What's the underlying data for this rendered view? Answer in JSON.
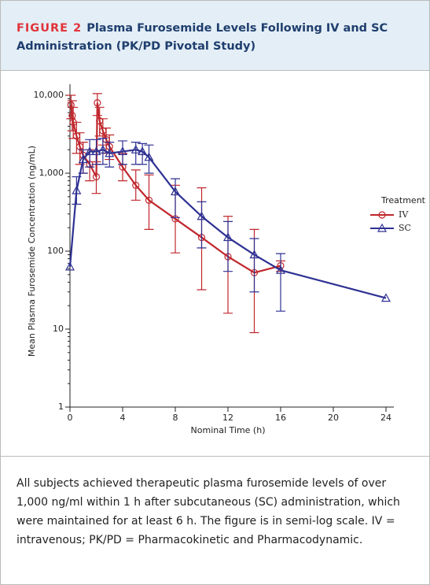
{
  "header": {
    "label": "FIGURE 2",
    "title": "Plasma Furosemide Levels Following IV and SC Administration (PK/PD Pivotal Study)"
  },
  "chart_data": {
    "type": "line",
    "log_y": true,
    "y_label": "Mean Plasma Furosemide Concentration (ng/mL)",
    "x_label": "Nominal Time (h)",
    "legend_title": "Treatment",
    "legend": "right",
    "xlim": [
      0,
      24
    ],
    "xticks": [
      0,
      4,
      8,
      12,
      16,
      20,
      24
    ],
    "ylim": [
      1,
      10000
    ],
    "yticks": [
      1,
      10,
      100,
      {
        "value": 1000,
        "label": "1,000"
      },
      {
        "value": 10000,
        "label": "10,000"
      }
    ],
    "series": [
      {
        "name": "IV",
        "color": "#c0272d",
        "marker": "circle",
        "x": [
          0.08,
          0.17,
          0.25,
          0.5,
          0.75,
          1,
          1.5,
          2,
          2.08,
          2.25,
          2.5,
          2.75,
          3,
          4,
          5,
          6,
          8,
          10,
          12,
          14,
          16
        ],
        "values": [
          7500,
          5500,
          4500,
          3000,
          2200,
          1700,
          1300,
          900,
          8000,
          4700,
          3500,
          2700,
          2200,
          1200,
          700,
          450,
          260,
          150,
          85,
          53,
          65
        ],
        "lower": [
          5000,
          3500,
          2800,
          1800,
          1300,
          1000,
          800,
          550,
          5500,
          3000,
          2300,
          1800,
          1500,
          800,
          450,
          190,
          95,
          32,
          16,
          9,
          55
        ],
        "upper": [
          10000,
          8500,
          7000,
          4500,
          3300,
          2500,
          2000,
          1400,
          10500,
          7000,
          5000,
          3800,
          3100,
          1800,
          1100,
          950,
          700,
          650,
          280,
          190,
          75
        ]
      },
      {
        "name": "SC",
        "color": "#2e3192",
        "marker": "triangle",
        "x": [
          0,
          0.5,
          1,
          1.5,
          2,
          2.5,
          3,
          4,
          5,
          5.5,
          6,
          8,
          10,
          12,
          14,
          16,
          24
        ],
        "values": [
          63,
          600,
          1500,
          1900,
          1900,
          2000,
          1800,
          1900,
          2000,
          1900,
          1600,
          580,
          280,
          150,
          90,
          57,
          25
        ],
        "lower": [
          null,
          400,
          1000,
          1200,
          1300,
          1300,
          1200,
          1300,
          1300,
          1300,
          1000,
          270,
          110,
          55,
          30,
          17,
          null
        ],
        "upper": [
          null,
          900,
          2000,
          2700,
          2700,
          2800,
          2500,
          2600,
          2500,
          2400,
          2300,
          850,
          430,
          240,
          145,
          93,
          null
        ]
      }
    ]
  },
  "caption": "All subjects achieved therapeutic plasma furosemide levels of over 1,000 ng/ml within 1 h after subcutaneous (SC) administration, which were maintained for at least 6 h. The figure is in semi-log scale. IV = intravenous; PK/PD = Pharmacokinetic and Pharmacodynamic."
}
